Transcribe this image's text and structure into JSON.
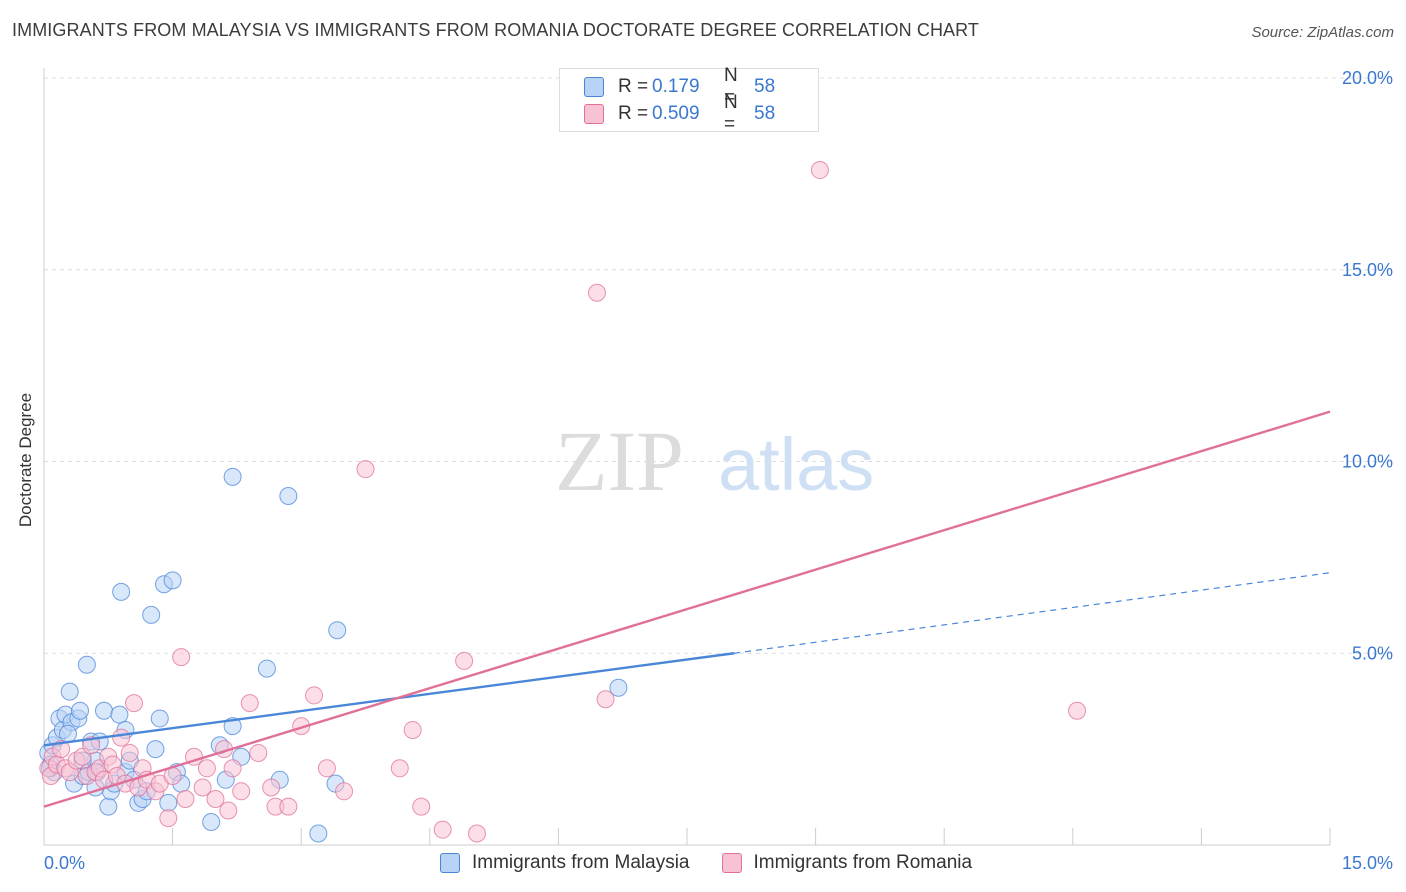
{
  "title": "IMMIGRANTS FROM MALAYSIA VS IMMIGRANTS FROM ROMANIA DOCTORATE DEGREE CORRELATION CHART",
  "source": "Source: ZipAtlas.com",
  "watermark": {
    "zip": "ZIP",
    "atlas": "atlas"
  },
  "legend": {
    "r_label": "R =",
    "n_label": "N =",
    "rows": [
      {
        "name": "Immigrants from Malaysia",
        "r": "0.179",
        "n": "58",
        "color": "#4a86d8",
        "fill": "#b9d3f5"
      },
      {
        "name": "Immigrants from Romania",
        "r": "0.509",
        "n": "58",
        "color": "#e07098",
        "fill": "#f7c3d4"
      }
    ]
  },
  "chart_data": {
    "type": "scatter",
    "title": "IMMIGRANTS FROM MALAYSIA VS IMMIGRANTS FROM ROMANIA DOCTORATE DEGREE CORRELATION CHART",
    "xlabel": "",
    "ylabel": "Doctorate Degree",
    "xlim": [
      0,
      15
    ],
    "ylim": [
      0,
      20
    ],
    "x_tick_labels": [
      "0.0%",
      "15.0%"
    ],
    "y_tick_labels": [
      "5.0%",
      "10.0%",
      "15.0%",
      "20.0%"
    ],
    "y_ticks": [
      5,
      10,
      15,
      20
    ],
    "series": [
      {
        "name": "Immigrants from Malaysia",
        "color": "#4a86d8",
        "points": [
          [
            0.05,
            2.4
          ],
          [
            0.08,
            2.1
          ],
          [
            0.1,
            2.6
          ],
          [
            0.12,
            1.9
          ],
          [
            0.15,
            2.8
          ],
          [
            0.18,
            3.3
          ],
          [
            0.22,
            3.0
          ],
          [
            0.25,
            3.4
          ],
          [
            0.3,
            4.0
          ],
          [
            0.32,
            3.2
          ],
          [
            0.35,
            1.6
          ],
          [
            0.4,
            3.3
          ],
          [
            0.42,
            3.5
          ],
          [
            0.45,
            1.8
          ],
          [
            0.5,
            4.7
          ],
          [
            0.52,
            1.9
          ],
          [
            0.55,
            2.7
          ],
          [
            0.6,
            2.2
          ],
          [
            0.62,
            1.9
          ],
          [
            0.65,
            2.7
          ],
          [
            0.7,
            3.5
          ],
          [
            0.75,
            1.0
          ],
          [
            0.78,
            1.4
          ],
          [
            0.82,
            1.6
          ],
          [
            0.88,
            3.4
          ],
          [
            0.9,
            6.6
          ],
          [
            0.95,
            1.9
          ],
          [
            1.05,
            1.7
          ],
          [
            1.1,
            1.1
          ],
          [
            1.15,
            1.2
          ],
          [
            1.2,
            1.4
          ],
          [
            1.25,
            6.0
          ],
          [
            1.3,
            2.5
          ],
          [
            1.35,
            3.3
          ],
          [
            1.4,
            6.8
          ],
          [
            1.45,
            1.1
          ],
          [
            1.5,
            6.9
          ],
          [
            1.55,
            1.9
          ],
          [
            1.6,
            1.6
          ],
          [
            1.95,
            0.6
          ],
          [
            2.05,
            2.6
          ],
          [
            2.12,
            1.7
          ],
          [
            2.2,
            3.1
          ],
          [
            2.2,
            9.6
          ],
          [
            2.3,
            2.3
          ],
          [
            2.6,
            4.6
          ],
          [
            2.75,
            1.7
          ],
          [
            2.85,
            9.1
          ],
          [
            3.2,
            0.3
          ],
          [
            3.4,
            1.6
          ],
          [
            3.42,
            5.6
          ],
          [
            6.7,
            4.1
          ],
          [
            0.07,
            2.0
          ],
          [
            0.28,
            2.9
          ],
          [
            0.95,
            3.0
          ],
          [
            1.0,
            2.2
          ],
          [
            0.45,
            2.2
          ],
          [
            0.6,
            1.5
          ]
        ]
      },
      {
        "name": "Immigrants from Romania",
        "color": "#e07098",
        "points": [
          [
            0.05,
            2.0
          ],
          [
            0.08,
            1.8
          ],
          [
            0.1,
            2.3
          ],
          [
            0.15,
            2.1
          ],
          [
            0.2,
            2.5
          ],
          [
            0.25,
            2.0
          ],
          [
            0.3,
            1.9
          ],
          [
            0.38,
            2.2
          ],
          [
            0.45,
            2.3
          ],
          [
            0.5,
            1.8
          ],
          [
            0.55,
            2.6
          ],
          [
            0.6,
            1.9
          ],
          [
            0.65,
            2.0
          ],
          [
            0.7,
            1.7
          ],
          [
            0.75,
            2.3
          ],
          [
            0.8,
            2.1
          ],
          [
            0.85,
            1.8
          ],
          [
            0.9,
            2.8
          ],
          [
            0.95,
            1.6
          ],
          [
            1.0,
            2.4
          ],
          [
            1.05,
            3.7
          ],
          [
            1.1,
            1.5
          ],
          [
            1.15,
            2.0
          ],
          [
            1.2,
            1.7
          ],
          [
            1.3,
            1.4
          ],
          [
            1.35,
            1.6
          ],
          [
            1.45,
            0.7
          ],
          [
            1.5,
            1.8
          ],
          [
            1.6,
            4.9
          ],
          [
            1.65,
            1.2
          ],
          [
            1.75,
            2.3
          ],
          [
            1.85,
            1.5
          ],
          [
            1.9,
            2.0
          ],
          [
            2.0,
            1.2
          ],
          [
            2.1,
            2.5
          ],
          [
            2.15,
            0.9
          ],
          [
            2.2,
            2.0
          ],
          [
            2.3,
            1.4
          ],
          [
            2.4,
            3.7
          ],
          [
            2.5,
            2.4
          ],
          [
            2.65,
            1.5
          ],
          [
            2.7,
            1.0
          ],
          [
            2.85,
            1.0
          ],
          [
            3.0,
            3.1
          ],
          [
            3.15,
            3.9
          ],
          [
            3.3,
            2.0
          ],
          [
            3.5,
            1.4
          ],
          [
            3.75,
            9.8
          ],
          [
            4.15,
            2.0
          ],
          [
            4.3,
            3.0
          ],
          [
            4.4,
            1.0
          ],
          [
            4.65,
            0.4
          ],
          [
            4.9,
            4.8
          ],
          [
            5.05,
            0.3
          ],
          [
            6.45,
            14.4
          ],
          [
            6.55,
            3.8
          ],
          [
            9.05,
            17.6
          ],
          [
            12.05,
            3.5
          ]
        ]
      }
    ],
    "trend_lines": [
      {
        "series": "Immigrants from Malaysia",
        "x1": 0,
        "y1": 2.6,
        "x2": 8.05,
        "y2": 5.0,
        "dashed_to": {
          "x": 15,
          "y": 7.1
        }
      },
      {
        "series": "Immigrants from Romania",
        "x1": 0,
        "y1": 1.0,
        "x2": 15,
        "y2": 11.3
      }
    ]
  }
}
